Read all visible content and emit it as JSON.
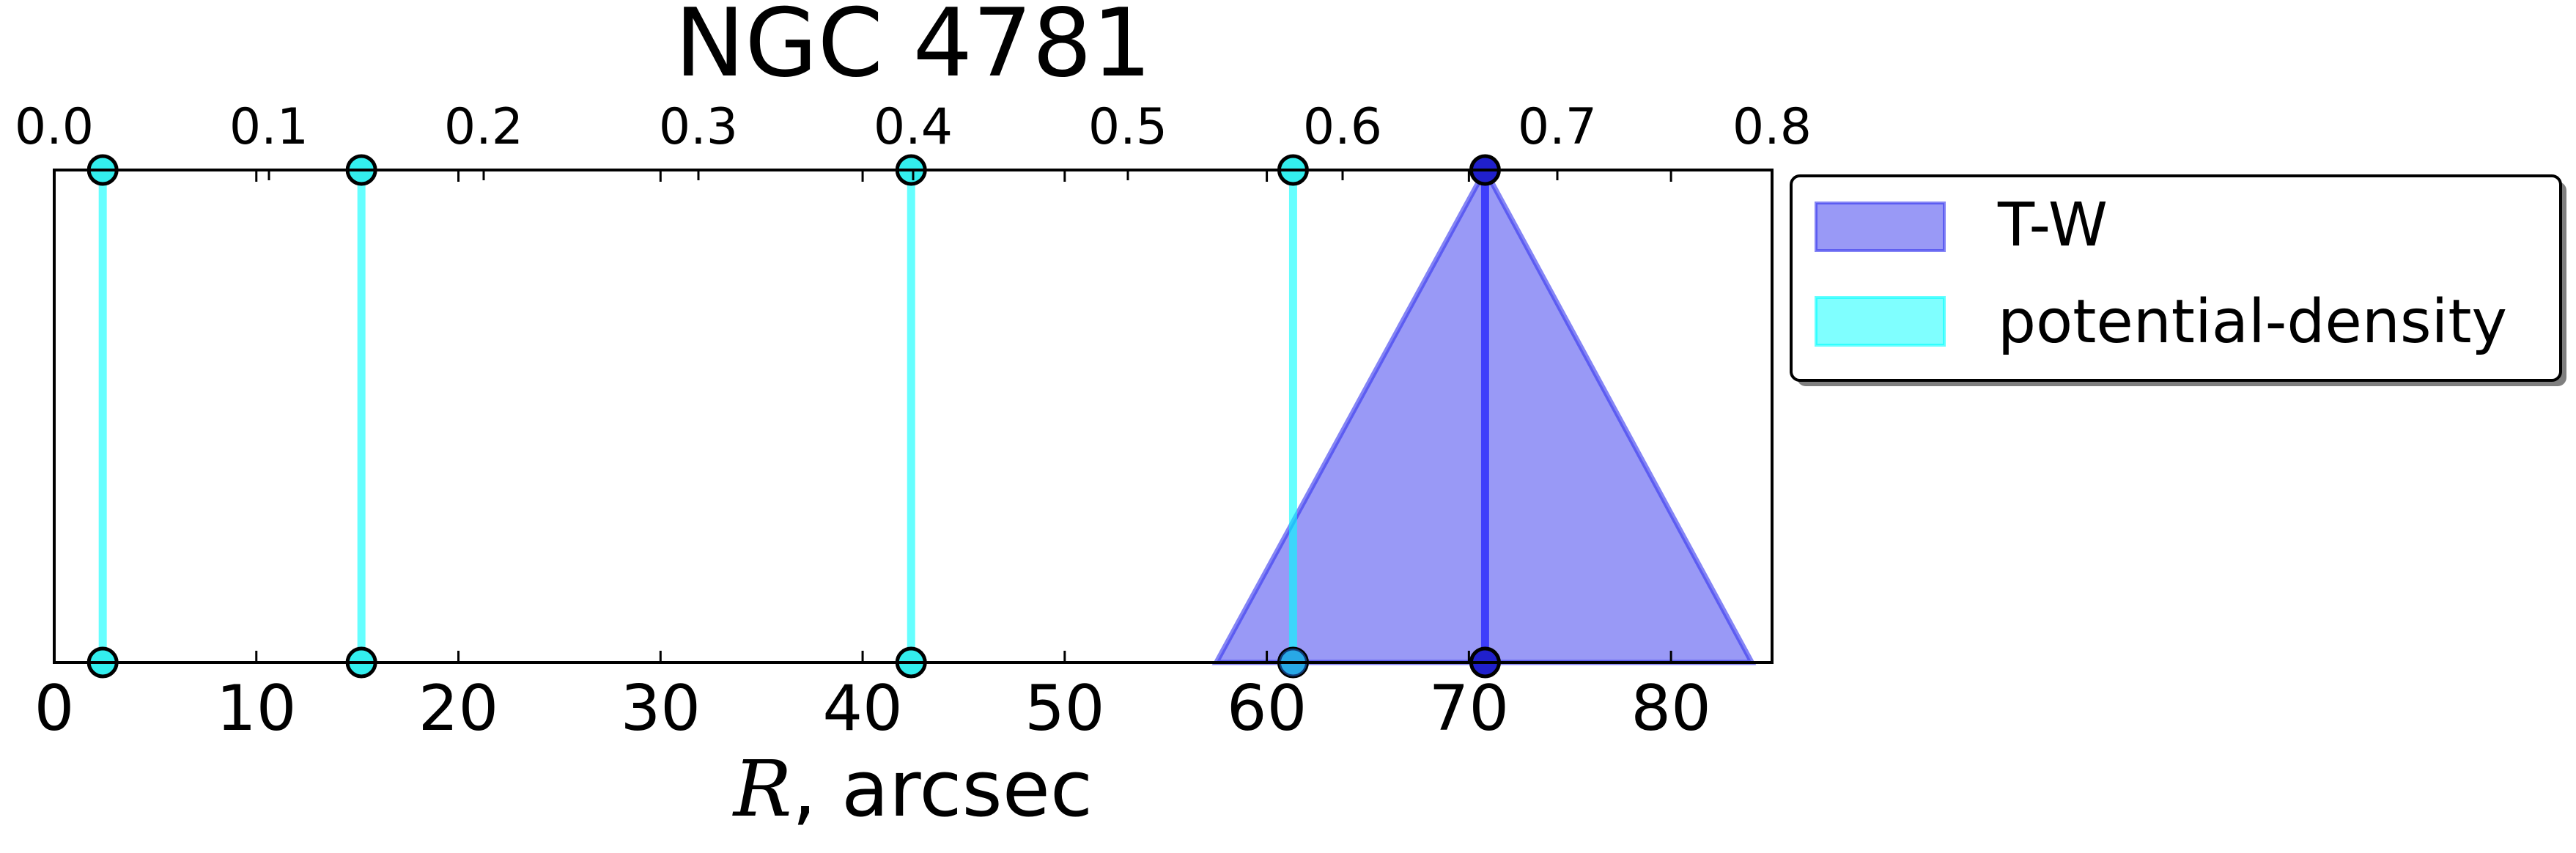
{
  "chart_data": {
    "type": "line",
    "title": "NGC 4781",
    "xlabel_math": "R",
    "xlabel_rest": ", arcsec",
    "xlim": [
      0,
      85
    ],
    "x_ticks": [
      0,
      10,
      20,
      30,
      40,
      50,
      60,
      70,
      80
    ],
    "x_tick_labels": [
      "0",
      "10",
      "20",
      "30",
      "40",
      "50",
      "60",
      "70",
      "80"
    ],
    "top_axis": {
      "lim": [
        0.0,
        0.8
      ],
      "ticks": [
        0.0,
        0.1,
        0.2,
        0.3,
        0.4,
        0.5,
        0.6,
        0.7,
        0.8
      ],
      "tick_labels": [
        "0.0",
        "0.1",
        "0.2",
        "0.3",
        "0.4",
        "0.5",
        "0.6",
        "0.7",
        "0.8"
      ]
    },
    "grid": false,
    "legend_position": "outside-right-top",
    "series": [
      {
        "name": "T-W",
        "color": "#0000ff",
        "fill_color": "#3333ee",
        "values": [
          70.8
        ],
        "range": [
          57.5,
          84.0
        ]
      },
      {
        "name": "potential-density",
        "color": "#00ffff",
        "values": [
          2.4,
          15.2,
          42.4,
          61.3
        ]
      }
    ]
  }
}
